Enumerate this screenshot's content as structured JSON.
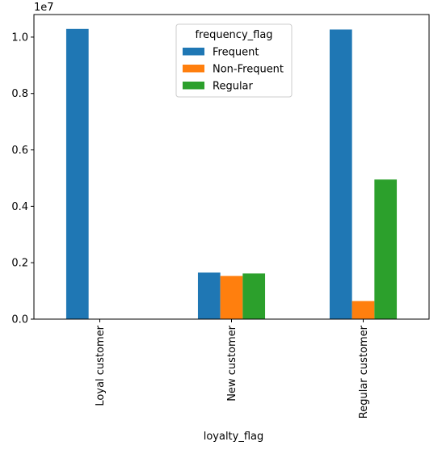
{
  "chart_data": {
    "type": "bar",
    "categories": [
      "Loyal customer",
      "New customer",
      "Regular customer"
    ],
    "series": [
      {
        "name": "Frequent",
        "color": "#1f77b4",
        "values": [
          10290000,
          1650000,
          10270000
        ]
      },
      {
        "name": "Non-Frequent",
        "color": "#ff7f0e",
        "values": [
          0,
          1530000,
          640000
        ]
      },
      {
        "name": "Regular",
        "color": "#2ca02c",
        "values": [
          0,
          1620000,
          4950000
        ]
      }
    ],
    "xlabel": "loyalty_flag",
    "ylabel": "",
    "ylim": [
      0,
      10800000
    ],
    "y_ticks": [
      "0.0",
      "0.2",
      "0.4",
      "0.6",
      "0.8",
      "1.0"
    ],
    "y_offset_label": "1e7",
    "legend_title": "frequency_flag",
    "legend_position": "upper center",
    "grid": false
  }
}
